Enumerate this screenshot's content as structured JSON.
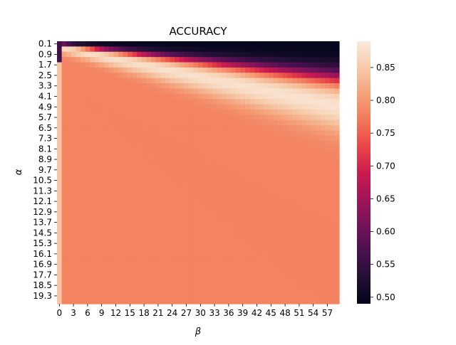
{
  "chart_data": {
    "type": "heatmap",
    "title": "ACCURACY",
    "xlabel": "β",
    "ylabel": "α",
    "x_values_start": 0,
    "x_values_step": 1,
    "x_values_count": 60,
    "x_tick_labels": [
      "0",
      "3",
      "6",
      "9",
      "12",
      "15",
      "18",
      "21",
      "24",
      "27",
      "30",
      "33",
      "36",
      "39",
      "42",
      "45",
      "48",
      "51",
      "54",
      "57"
    ],
    "y_values_start": 0.1,
    "y_values_step": 0.4,
    "y_values_count": 50,
    "y_tick_labels": [
      "0.1",
      "0.9",
      "1.7",
      "2.5",
      "3.3",
      "4.1",
      "4.9",
      "5.7",
      "6.5",
      "7.3",
      "8.1",
      "8.9",
      "9.7",
      "10.5",
      "11.3",
      "12.1",
      "12.9",
      "13.7",
      "14.5",
      "15.3",
      "16.1",
      "16.9",
      "17.7",
      "18.5",
      "19.3"
    ],
    "value_range": [
      0.49,
      0.89
    ],
    "colorbar_ticks": [
      "0.50",
      "0.55",
      "0.60",
      "0.65",
      "0.70",
      "0.75",
      "0.80",
      "0.85"
    ],
    "colorbar_tick_values": [
      0.5,
      0.55,
      0.6,
      0.65,
      0.7,
      0.75,
      0.8,
      0.85
    ],
    "colormap": "rocket",
    "grid": false,
    "summary": {
      "low_alpha_region_value": 0.49,
      "peak_ridge_value": 0.885,
      "plateau_value": 0.78
    }
  }
}
